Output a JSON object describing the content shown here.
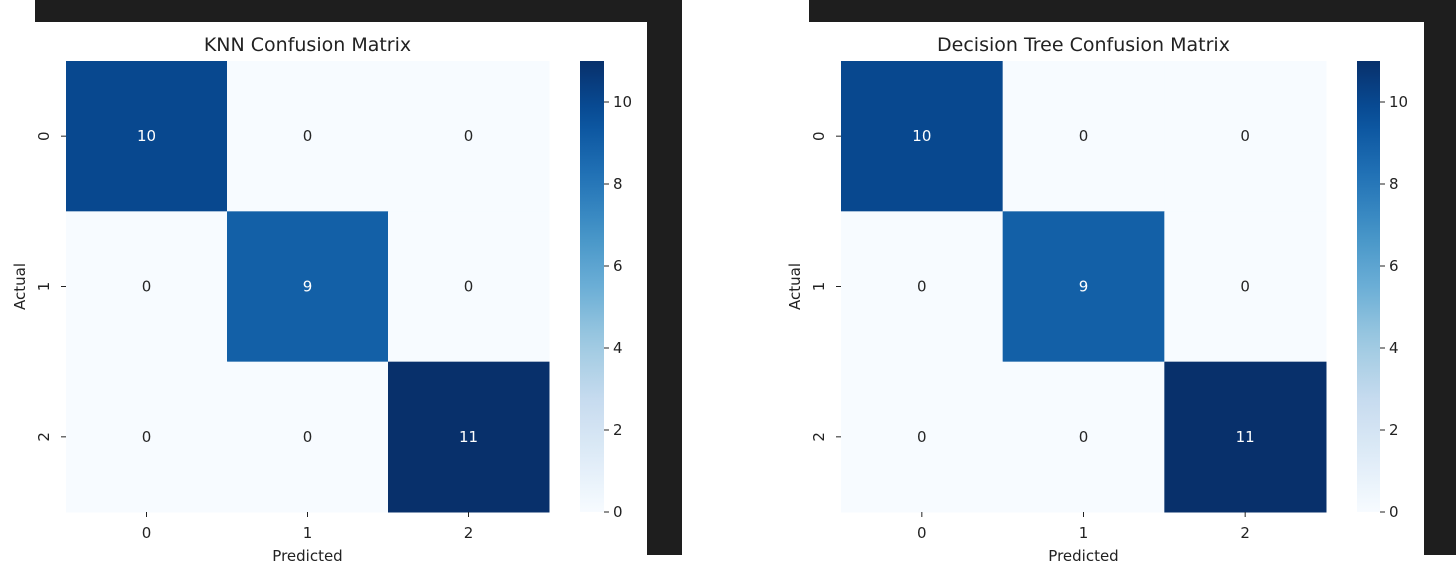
{
  "chart_data": [
    {
      "type": "heatmap",
      "title": "KNN Confusion Matrix",
      "xlabel": "Predicted",
      "ylabel": "Actual",
      "x_categories": [
        "0",
        "1",
        "2"
      ],
      "y_categories": [
        "0",
        "1",
        "2"
      ],
      "values": [
        [
          10,
          0,
          0
        ],
        [
          0,
          9,
          0
        ],
        [
          0,
          0,
          11
        ]
      ],
      "colormap": "Blues",
      "annotated": true,
      "colorbar": {
        "range": [
          0,
          11
        ],
        "ticks": [
          0,
          2,
          4,
          6,
          8,
          10
        ]
      }
    },
    {
      "type": "heatmap",
      "title": "Decision Tree Confusion Matrix",
      "xlabel": "Predicted",
      "ylabel": "Actual",
      "x_categories": [
        "0",
        "1",
        "2"
      ],
      "y_categories": [
        "0",
        "1",
        "2"
      ],
      "values": [
        [
          10,
          0,
          0
        ],
        [
          0,
          9,
          0
        ],
        [
          0,
          0,
          11
        ]
      ],
      "colormap": "Blues",
      "annotated": true,
      "colorbar": {
        "range": [
          0,
          11
        ],
        "ticks": [
          0,
          2,
          4,
          6,
          8,
          10
        ]
      }
    }
  ],
  "colors": {
    "background": "#ffffff",
    "dark_frame": "#1e1e1e",
    "blues_scale": [
      "#f7fbff",
      "#deebf7",
      "#c6dbef",
      "#9ecae1",
      "#6baed6",
      "#4292c6",
      "#2171b5",
      "#08519c",
      "#08306b"
    ]
  }
}
